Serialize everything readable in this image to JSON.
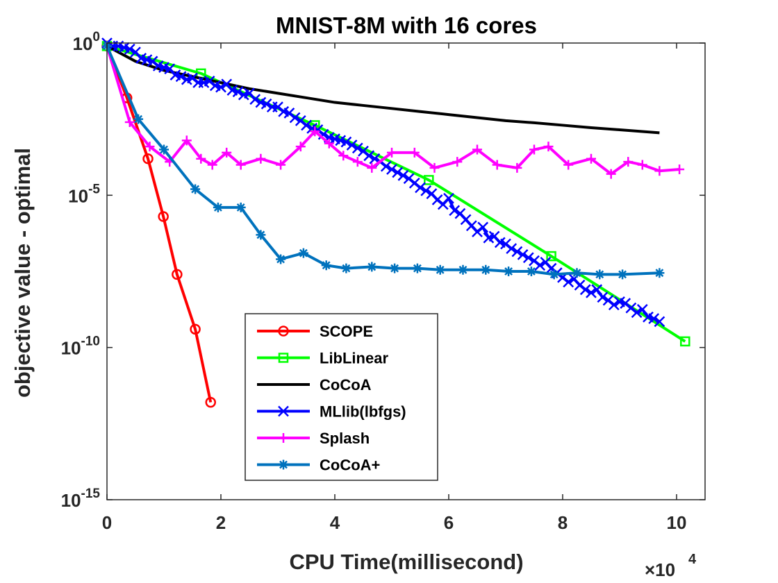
{
  "chart_data": {
    "type": "line",
    "title": "MNIST-8M with 16 cores",
    "xlabel": "CPU Time(millisecond)",
    "ylabel": "objective value - optimal",
    "x_multiplier_label": "×10",
    "x_multiplier_exp": "4",
    "x_scale": 10000,
    "xlim": [
      0,
      105000
    ],
    "ylim_log10": [
      -15,
      0
    ],
    "yscale": "log",
    "x_ticks": [
      0,
      20000,
      40000,
      60000,
      80000,
      100000
    ],
    "x_tick_labels": [
      "0",
      "2",
      "4",
      "6",
      "8",
      "10"
    ],
    "y_ticks_log10": [
      0,
      -5,
      -10,
      -15
    ],
    "y_tick_base": "10",
    "y_tick_exponents": [
      "0",
      "-5",
      "-10",
      "-15"
    ],
    "legend_position": "lower-left-inside",
    "series": [
      {
        "name": "SCOPE",
        "color": "#ff0000",
        "marker": "circle",
        "points": [
          [
            0,
            -0.1
          ],
          [
            3500,
            -1.8
          ],
          [
            7200,
            -3.8
          ],
          [
            9900,
            -5.7
          ],
          [
            12300,
            -7.6
          ],
          [
            15500,
            -9.4
          ],
          [
            18200,
            -11.8
          ]
        ]
      },
      {
        "name": "LibLinear",
        "color": "#00ff00",
        "marker": "square",
        "points": [
          [
            0,
            -0.1
          ],
          [
            16500,
            -1.0
          ],
          [
            36500,
            -2.7
          ],
          [
            56500,
            -4.5
          ],
          [
            78000,
            -7.0
          ],
          [
            101500,
            -9.8
          ]
        ]
      },
      {
        "name": "CoCoA",
        "color": "#000000",
        "marker": "none",
        "points": [
          [
            0,
            -0.1
          ],
          [
            5000,
            -0.6
          ],
          [
            10000,
            -0.9
          ],
          [
            15000,
            -1.1
          ],
          [
            20000,
            -1.3
          ],
          [
            25000,
            -1.5
          ],
          [
            30000,
            -1.65
          ],
          [
            35000,
            -1.8
          ],
          [
            40000,
            -1.95
          ],
          [
            45000,
            -2.05
          ],
          [
            50000,
            -2.15
          ],
          [
            55000,
            -2.25
          ],
          [
            60000,
            -2.35
          ],
          [
            65000,
            -2.45
          ],
          [
            70000,
            -2.55
          ],
          [
            75000,
            -2.62
          ],
          [
            80000,
            -2.7
          ],
          [
            85000,
            -2.78
          ],
          [
            90000,
            -2.85
          ],
          [
            97000,
            -2.95
          ]
        ]
      },
      {
        "name": "MLlib(lbfgs)",
        "color": "#0000ff",
        "marker": "x",
        "points": [
          [
            0,
            0.0
          ],
          [
            1000,
            -0.1
          ],
          [
            2000,
            -0.1
          ],
          [
            3000,
            -0.15
          ],
          [
            4000,
            -0.2
          ],
          [
            5000,
            -0.3
          ],
          [
            6000,
            -0.5
          ],
          [
            7000,
            -0.55
          ],
          [
            8000,
            -0.6
          ],
          [
            9000,
            -0.75
          ],
          [
            10000,
            -0.8
          ],
          [
            11000,
            -0.85
          ],
          [
            12000,
            -1.05
          ],
          [
            13000,
            -1.1
          ],
          [
            14000,
            -1.2
          ],
          [
            15000,
            -1.15
          ],
          [
            16000,
            -1.3
          ],
          [
            17000,
            -1.3
          ],
          [
            18000,
            -1.25
          ],
          [
            19000,
            -1.4
          ],
          [
            20000,
            -1.45
          ],
          [
            21000,
            -1.35
          ],
          [
            22000,
            -1.55
          ],
          [
            23000,
            -1.6
          ],
          [
            24000,
            -1.7
          ],
          [
            25000,
            -1.65
          ],
          [
            26000,
            -1.85
          ],
          [
            27000,
            -1.95
          ],
          [
            28000,
            -2.0
          ],
          [
            29000,
            -2.1
          ],
          [
            30000,
            -2.1
          ],
          [
            31000,
            -2.25
          ],
          [
            32000,
            -2.3
          ],
          [
            33000,
            -2.45
          ],
          [
            34000,
            -2.55
          ],
          [
            35000,
            -2.7
          ],
          [
            36000,
            -2.8
          ],
          [
            37000,
            -2.85
          ],
          [
            38000,
            -3.0
          ],
          [
            39000,
            -3.1
          ],
          [
            40000,
            -3.15
          ],
          [
            41000,
            -3.2
          ],
          [
            42000,
            -3.25
          ],
          [
            43000,
            -3.35
          ],
          [
            44000,
            -3.45
          ],
          [
            45000,
            -3.55
          ],
          [
            46000,
            -3.7
          ],
          [
            47000,
            -3.8
          ],
          [
            48000,
            -3.9
          ],
          [
            49000,
            -4.05
          ],
          [
            50000,
            -4.15
          ],
          [
            51000,
            -4.25
          ],
          [
            52000,
            -4.35
          ],
          [
            53000,
            -4.45
          ],
          [
            54000,
            -4.6
          ],
          [
            55000,
            -4.75
          ],
          [
            56000,
            -4.85
          ],
          [
            57000,
            -4.95
          ],
          [
            58000,
            -5.15
          ],
          [
            59000,
            -5.3
          ],
          [
            60000,
            -5.1
          ],
          [
            61000,
            -5.5
          ],
          [
            62000,
            -5.6
          ],
          [
            63000,
            -5.8
          ],
          [
            64000,
            -6.0
          ],
          [
            65000,
            -6.2
          ],
          [
            66000,
            -6.05
          ],
          [
            67000,
            -6.4
          ],
          [
            68000,
            -6.35
          ],
          [
            69000,
            -6.55
          ],
          [
            70000,
            -6.6
          ],
          [
            71000,
            -6.75
          ],
          [
            72000,
            -6.85
          ],
          [
            73000,
            -6.95
          ],
          [
            74000,
            -7.05
          ],
          [
            75000,
            -7.15
          ],
          [
            76000,
            -7.3
          ],
          [
            77000,
            -7.2
          ],
          [
            78000,
            -7.4
          ],
          [
            79000,
            -7.55
          ],
          [
            80000,
            -7.7
          ],
          [
            81000,
            -7.85
          ],
          [
            82000,
            -7.75
          ],
          [
            83000,
            -7.95
          ],
          [
            84000,
            -8.1
          ],
          [
            85000,
            -8.2
          ],
          [
            86000,
            -8.1
          ],
          [
            87000,
            -8.35
          ],
          [
            88000,
            -8.45
          ],
          [
            89000,
            -8.6
          ],
          [
            90000,
            -8.5
          ],
          [
            91000,
            -8.55
          ],
          [
            92000,
            -8.7
          ],
          [
            93000,
            -8.85
          ],
          [
            94000,
            -8.75
          ],
          [
            95000,
            -9.0
          ],
          [
            96000,
            -9.05
          ],
          [
            97000,
            -9.15
          ]
        ]
      },
      {
        "name": "Splash",
        "color": "#ff00ff",
        "marker": "plus",
        "points": [
          [
            0,
            -0.1
          ],
          [
            4000,
            -2.6
          ],
          [
            7500,
            -3.4
          ],
          [
            11000,
            -3.9
          ],
          [
            14000,
            -3.2
          ],
          [
            16500,
            -3.8
          ],
          [
            18500,
            -4.0
          ],
          [
            21000,
            -3.6
          ],
          [
            23500,
            -4.0
          ],
          [
            27000,
            -3.8
          ],
          [
            30500,
            -4.0
          ],
          [
            34000,
            -3.4
          ],
          [
            36500,
            -2.9
          ],
          [
            39000,
            -3.3
          ],
          [
            41500,
            -3.7
          ],
          [
            44000,
            -3.9
          ],
          [
            46500,
            -4.1
          ],
          [
            50000,
            -3.6
          ],
          [
            54000,
            -3.6
          ],
          [
            57500,
            -4.1
          ],
          [
            61500,
            -3.9
          ],
          [
            65000,
            -3.5
          ],
          [
            68500,
            -4.0
          ],
          [
            72000,
            -4.1
          ],
          [
            75000,
            -3.5
          ],
          [
            77500,
            -3.4
          ],
          [
            81000,
            -4.0
          ],
          [
            85000,
            -3.8
          ],
          [
            88500,
            -4.3
          ],
          [
            91500,
            -3.9
          ],
          [
            94000,
            -4.0
          ],
          [
            97000,
            -4.2
          ],
          [
            100500,
            -4.15
          ]
        ]
      },
      {
        "name": "CoCoA+",
        "color": "#0072bd",
        "marker": "star",
        "points": [
          [
            0,
            -0.1
          ],
          [
            5500,
            -2.5
          ],
          [
            10000,
            -3.5
          ],
          [
            15500,
            -4.8
          ],
          [
            19500,
            -5.4
          ],
          [
            23500,
            -5.4
          ],
          [
            27000,
            -6.3
          ],
          [
            30500,
            -7.1
          ],
          [
            34500,
            -6.9
          ],
          [
            38500,
            -7.3
          ],
          [
            42000,
            -7.4
          ],
          [
            46500,
            -7.35
          ],
          [
            50500,
            -7.4
          ],
          [
            54500,
            -7.4
          ],
          [
            58500,
            -7.45
          ],
          [
            62500,
            -7.45
          ],
          [
            66500,
            -7.45
          ],
          [
            70500,
            -7.5
          ],
          [
            74500,
            -7.5
          ],
          [
            78500,
            -7.6
          ],
          [
            82500,
            -7.55
          ],
          [
            86500,
            -7.6
          ],
          [
            90500,
            -7.6
          ],
          [
            97000,
            -7.55
          ]
        ]
      }
    ]
  }
}
